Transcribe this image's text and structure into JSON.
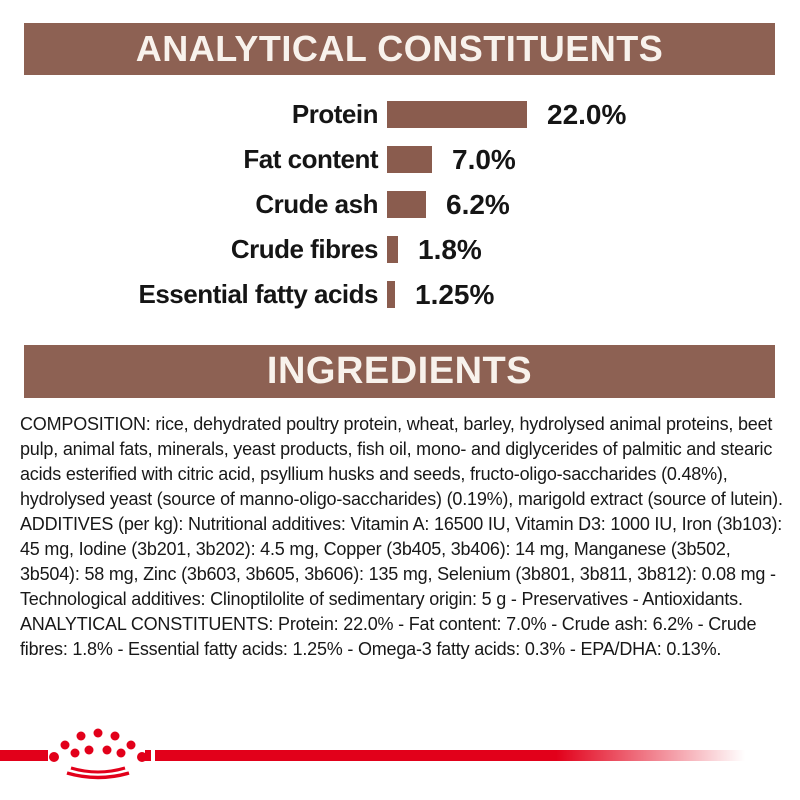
{
  "headers": {
    "analytical": "ANALYTICAL CONSTITUENTS",
    "ingredients": "INGREDIENTS"
  },
  "colors": {
    "banner_brown": "#8d6153",
    "bar_brown": "#8a5c4e",
    "banner_text": "#f8f2ec",
    "body_text": "#181818",
    "brand_red": "#e2001a"
  },
  "chart_data": {
    "type": "bar",
    "orientation": "horizontal",
    "title": "ANALYTICAL CONSTITUENTS",
    "categories": [
      "Protein",
      "Fat content",
      "Crude ash",
      "Crude fibres",
      "Essential fatty acids"
    ],
    "values": [
      22.0,
      7.0,
      6.2,
      1.8,
      1.25
    ],
    "value_labels": [
      "22.0%",
      "7.0%",
      "6.2%",
      "1.8%",
      "1.25%"
    ],
    "unit": "%",
    "xlim": [
      0,
      22
    ],
    "bar_color": "#8a5c4e",
    "grid": false,
    "legend": false
  },
  "ingredients": {
    "text": "COMPOSITION: rice, dehydrated poultry protein, wheat, barley, hydrolysed animal proteins, beet pulp, animal fats, minerals, yeast products, fish oil, mono- and diglycerides of palmitic and stearic acids esterified with citric acid, psyllium husks and seeds, fructo-oligo-saccharides (0.48%), hydrolysed yeast (source of manno-oligo-saccharides) (0.19%), marigold extract (source of lutein). ADDITIVES (per kg): Nutritional additives: Vitamin A: 16500 IU, Vitamin D3: 1000 IU, Iron (3b103): 45 mg, Iodine (3b201, 3b202): 4.5 mg, Copper (3b405, 3b406): 14 mg, Manganese (3b502, 3b504): 58 mg, Zinc (3b603, 3b605, 3b606): 135 mg, Selenium (3b801, 3b811, 3b812): 0.08 mg - Technological additives: Clinoptilolite of sedimentary origin: 5 g - Preservatives - Antioxidants. ANALYTICAL CONSTITUENTS: Protein: 22.0% - Fat content: 7.0% - Crude ash: 6.2% - Crude fibres: 1.8% - Essential fatty acids: 1.25% - Omega-3 fatty acids: 0.3% - EPA/DHA: 0.13%."
  },
  "logo": {
    "name": "royal-canin-crown",
    "color": "#e2001a"
  }
}
